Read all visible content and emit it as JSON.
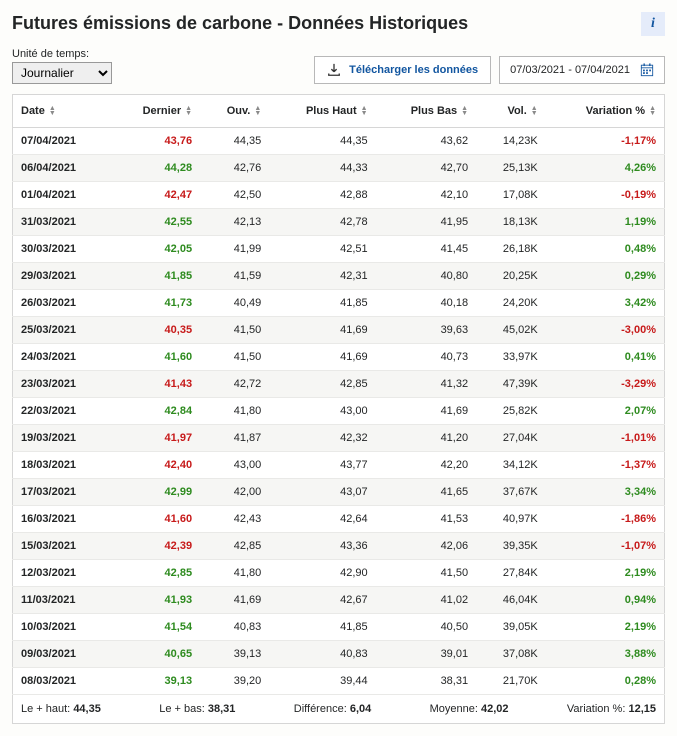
{
  "title": "Futures émissions de carbone - Données Historiques",
  "time_unit_label": "Unité de temps:",
  "time_unit_value": "Journalier",
  "download_label": "Télécharger les données",
  "date_range": "07/03/2021 - 07/04/2021",
  "columns": [
    "Date",
    "Dernier",
    "Ouv.",
    "Plus Haut",
    "Plus Bas",
    "Vol.",
    "Variation %"
  ],
  "colors": {
    "positive": "#2e8b1f",
    "negative": "#c71a1a"
  },
  "rows": [
    {
      "date": "07/04/2021",
      "last": "43,76",
      "last_dir": "neg",
      "open": "44,35",
      "high": "44,35",
      "low": "43,62",
      "vol": "14,23K",
      "chg": "-1,17%",
      "chg_dir": "neg"
    },
    {
      "date": "06/04/2021",
      "last": "44,28",
      "last_dir": "pos",
      "open": "42,76",
      "high": "44,33",
      "low": "42,70",
      "vol": "25,13K",
      "chg": "4,26%",
      "chg_dir": "pos"
    },
    {
      "date": "01/04/2021",
      "last": "42,47",
      "last_dir": "neg",
      "open": "42,50",
      "high": "42,88",
      "low": "42,10",
      "vol": "17,08K",
      "chg": "-0,19%",
      "chg_dir": "neg"
    },
    {
      "date": "31/03/2021",
      "last": "42,55",
      "last_dir": "pos",
      "open": "42,13",
      "high": "42,78",
      "low": "41,95",
      "vol": "18,13K",
      "chg": "1,19%",
      "chg_dir": "pos"
    },
    {
      "date": "30/03/2021",
      "last": "42,05",
      "last_dir": "pos",
      "open": "41,99",
      "high": "42,51",
      "low": "41,45",
      "vol": "26,18K",
      "chg": "0,48%",
      "chg_dir": "pos"
    },
    {
      "date": "29/03/2021",
      "last": "41,85",
      "last_dir": "pos",
      "open": "41,59",
      "high": "42,31",
      "low": "40,80",
      "vol": "20,25K",
      "chg": "0,29%",
      "chg_dir": "pos"
    },
    {
      "date": "26/03/2021",
      "last": "41,73",
      "last_dir": "pos",
      "open": "40,49",
      "high": "41,85",
      "low": "40,18",
      "vol": "24,20K",
      "chg": "3,42%",
      "chg_dir": "pos"
    },
    {
      "date": "25/03/2021",
      "last": "40,35",
      "last_dir": "neg",
      "open": "41,50",
      "high": "41,69",
      "low": "39,63",
      "vol": "45,02K",
      "chg": "-3,00%",
      "chg_dir": "neg"
    },
    {
      "date": "24/03/2021",
      "last": "41,60",
      "last_dir": "pos",
      "open": "41,50",
      "high": "41,69",
      "low": "40,73",
      "vol": "33,97K",
      "chg": "0,41%",
      "chg_dir": "pos"
    },
    {
      "date": "23/03/2021",
      "last": "41,43",
      "last_dir": "neg",
      "open": "42,72",
      "high": "42,85",
      "low": "41,32",
      "vol": "47,39K",
      "chg": "-3,29%",
      "chg_dir": "neg"
    },
    {
      "date": "22/03/2021",
      "last": "42,84",
      "last_dir": "pos",
      "open": "41,80",
      "high": "43,00",
      "low": "41,69",
      "vol": "25,82K",
      "chg": "2,07%",
      "chg_dir": "pos"
    },
    {
      "date": "19/03/2021",
      "last": "41,97",
      "last_dir": "neg",
      "open": "41,87",
      "high": "42,32",
      "low": "41,20",
      "vol": "27,04K",
      "chg": "-1,01%",
      "chg_dir": "neg"
    },
    {
      "date": "18/03/2021",
      "last": "42,40",
      "last_dir": "neg",
      "open": "43,00",
      "high": "43,77",
      "low": "42,20",
      "vol": "34,12K",
      "chg": "-1,37%",
      "chg_dir": "neg"
    },
    {
      "date": "17/03/2021",
      "last": "42,99",
      "last_dir": "pos",
      "open": "42,00",
      "high": "43,07",
      "low": "41,65",
      "vol": "37,67K",
      "chg": "3,34%",
      "chg_dir": "pos"
    },
    {
      "date": "16/03/2021",
      "last": "41,60",
      "last_dir": "neg",
      "open": "42,43",
      "high": "42,64",
      "low": "41,53",
      "vol": "40,97K",
      "chg": "-1,86%",
      "chg_dir": "neg"
    },
    {
      "date": "15/03/2021",
      "last": "42,39",
      "last_dir": "neg",
      "open": "42,85",
      "high": "43,36",
      "low": "42,06",
      "vol": "39,35K",
      "chg": "-1,07%",
      "chg_dir": "neg"
    },
    {
      "date": "12/03/2021",
      "last": "42,85",
      "last_dir": "pos",
      "open": "41,80",
      "high": "42,90",
      "low": "41,50",
      "vol": "27,84K",
      "chg": "2,19%",
      "chg_dir": "pos"
    },
    {
      "date": "11/03/2021",
      "last": "41,93",
      "last_dir": "pos",
      "open": "41,69",
      "high": "42,67",
      "low": "41,02",
      "vol": "46,04K",
      "chg": "0,94%",
      "chg_dir": "pos"
    },
    {
      "date": "10/03/2021",
      "last": "41,54",
      "last_dir": "pos",
      "open": "40,83",
      "high": "41,85",
      "low": "40,50",
      "vol": "39,05K",
      "chg": "2,19%",
      "chg_dir": "pos"
    },
    {
      "date": "09/03/2021",
      "last": "40,65",
      "last_dir": "pos",
      "open": "39,13",
      "high": "40,83",
      "low": "39,01",
      "vol": "37,08K",
      "chg": "3,88%",
      "chg_dir": "pos"
    },
    {
      "date": "08/03/2021",
      "last": "39,13",
      "last_dir": "pos",
      "open": "39,20",
      "high": "39,44",
      "low": "38,31",
      "vol": "21,70K",
      "chg": "0,28%",
      "chg_dir": "pos"
    }
  ],
  "summary": {
    "high_label": "Le + haut:",
    "high_value": "44,35",
    "low_label": "Le + bas:",
    "low_value": "38,31",
    "diff_label": "Différence:",
    "diff_value": "6,04",
    "avg_label": "Moyenne:",
    "avg_value": "42,02",
    "chg_label": "Variation %:",
    "chg_value": "12,15"
  }
}
